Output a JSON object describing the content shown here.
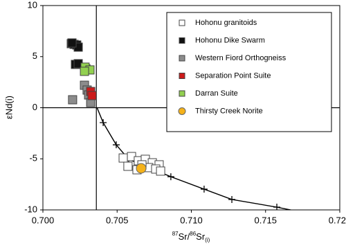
{
  "chart_data": {
    "type": "scatter",
    "x_label": {
      "sup1": "87",
      "main1": "Sr/",
      "sup2": "86",
      "main2": "Sr",
      "sub": "(i)"
    },
    "y_label": "εNd(i)",
    "xlim": [
      0.7,
      0.72
    ],
    "ylim": [
      -10,
      10
    ],
    "xticks": [
      {
        "value": 0.7,
        "label": "0.700"
      },
      {
        "value": 0.705,
        "label": "0.705"
      },
      {
        "value": 0.71,
        "label": "0.710"
      },
      {
        "value": 0.715,
        "label": "0.715"
      },
      {
        "value": 0.72,
        "label": "0.720"
      }
    ],
    "yticks": [
      10,
      5,
      0,
      -5,
      -10
    ],
    "reference_lines": {
      "x": 0.7036,
      "y": 0
    },
    "curve": {
      "color": "#000000",
      "x": [
        0.70364,
        0.70406,
        0.70494,
        0.70578,
        0.70862,
        0.71086,
        0.71273,
        0.71576,
        0.71716
      ],
      "y": [
        0.03,
        -1.46,
        -3.63,
        -5.05,
        -6.75,
        -7.97,
        -8.98,
        -9.73,
        -10.14
      ]
    },
    "series": [
      {
        "name": "Hohonu granitoids",
        "color": "#ffffff",
        "marker": "square",
        "x": [
          0.70541,
          0.70597,
          0.70643,
          0.7069,
          0.70737,
          0.70783,
          0.70573,
          0.70634,
          0.70713,
          0.7076,
          0.70793,
          0.70667
        ],
        "y": [
          -4.92,
          -4.78,
          -5.19,
          -5.05,
          -5.39,
          -5.59,
          -5.73,
          -6.07,
          -5.86,
          -6.0,
          -6.2,
          -5.59
        ]
      },
      {
        "name": "Hohonu Dike Swarm",
        "color": "#111111",
        "marker": "square",
        "x": [
          0.70191,
          0.7021,
          0.70228,
          0.70238,
          0.70219,
          0.70238,
          0.70196
        ],
        "y": [
          6.27,
          6.2,
          6.14,
          5.93,
          4.24,
          4.31,
          6.34
        ]
      },
      {
        "name": "Western Fiord Orthogneiss",
        "color": "#8c8c8c",
        "marker": "square",
        "x": [
          0.702,
          0.7028,
          0.70298,
          0.70308,
          0.70322,
          0.7029
        ],
        "y": [
          0.78,
          2.2,
          1.73,
          1.25,
          0.51,
          3.8
        ]
      },
      {
        "name": "Separation Point Suite",
        "color": "#cc1a1a",
        "marker": "square",
        "x": [
          0.70322,
          0.70331
        ],
        "y": [
          1.59,
          1.19
        ]
      },
      {
        "name": "Darran Suite",
        "color": "#92d050",
        "marker": "square",
        "x": [
          0.70284,
          0.70317,
          0.7028
        ],
        "y": [
          3.97,
          3.7,
          3.56
        ]
      },
      {
        "name": "Thirsty Creek Norite",
        "color": "#f5b21a",
        "marker": "circle",
        "x": [
          0.70662
        ],
        "y": [
          -5.93
        ]
      }
    ]
  }
}
